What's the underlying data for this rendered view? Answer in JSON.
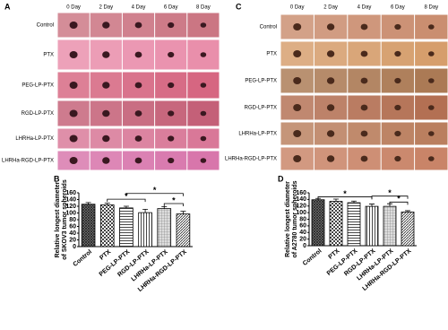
{
  "panels": [
    {
      "label": "A",
      "columns": [
        "0 Day",
        "2 Day",
        "4 Day",
        "6 Day",
        "8 Day"
      ],
      "rows": [
        "Control",
        "PTX",
        "PEG-LP-PTX",
        "RGD-LP-PTX",
        "LHRHa-LP-PTX",
        "LHRHa-RGD-LP-PTX"
      ]
    },
    {
      "label": "C",
      "columns": [
        "0 Day",
        "2 Day",
        "4 Day",
        "6 Day",
        "8 Day"
      ],
      "rows": [
        "Control",
        "PTX",
        "PEG-LP-PTX",
        "RGD-LP-PTX",
        "LHRHa-LP-PTX",
        "LHRHa-RGD-LP-PTX"
      ]
    }
  ],
  "chart_data": [
    {
      "type": "bar",
      "panel_label": "B",
      "y_label": [
        "Relative longest diameter",
        "of SKOV3 tumor spheroids"
      ],
      "categories": [
        "Control",
        "PTX",
        "PEG-LP-PTX",
        "RGD-LP-PTX",
        "LHRHa-LP-PTX",
        "LHRHa-RGD-LP-PTX"
      ],
      "values": [
        126,
        124,
        115,
        101,
        113,
        97
      ],
      "errors": [
        5,
        5,
        5,
        10,
        6,
        8
      ],
      "ylim": [
        0,
        160
      ],
      "yticks": [
        0,
        20,
        40,
        60,
        80,
        100,
        120,
        140,
        160
      ],
      "annotations": [
        "*",
        "*",
        "*"
      ]
    },
    {
      "type": "bar",
      "panel_label": "D",
      "y_label": [
        "Relative longest diameter",
        "of A2780 tumor spheroids"
      ],
      "categories": [
        "Control",
        "PTX",
        "PEG-LP-PTX",
        "RGD-LP-PTX",
        "LHRHa-LP-PTX",
        "LHRHa-RGD-LP-PTX"
      ],
      "values": [
        139,
        134,
        130,
        119,
        119,
        102
      ],
      "errors": [
        4,
        7,
        5,
        7,
        8,
        4
      ],
      "ylim": [
        0,
        160
      ],
      "yticks": [
        0,
        20,
        40,
        60,
        80,
        100,
        120,
        140,
        160
      ],
      "annotations": [
        "*",
        "*",
        "*"
      ]
    }
  ]
}
